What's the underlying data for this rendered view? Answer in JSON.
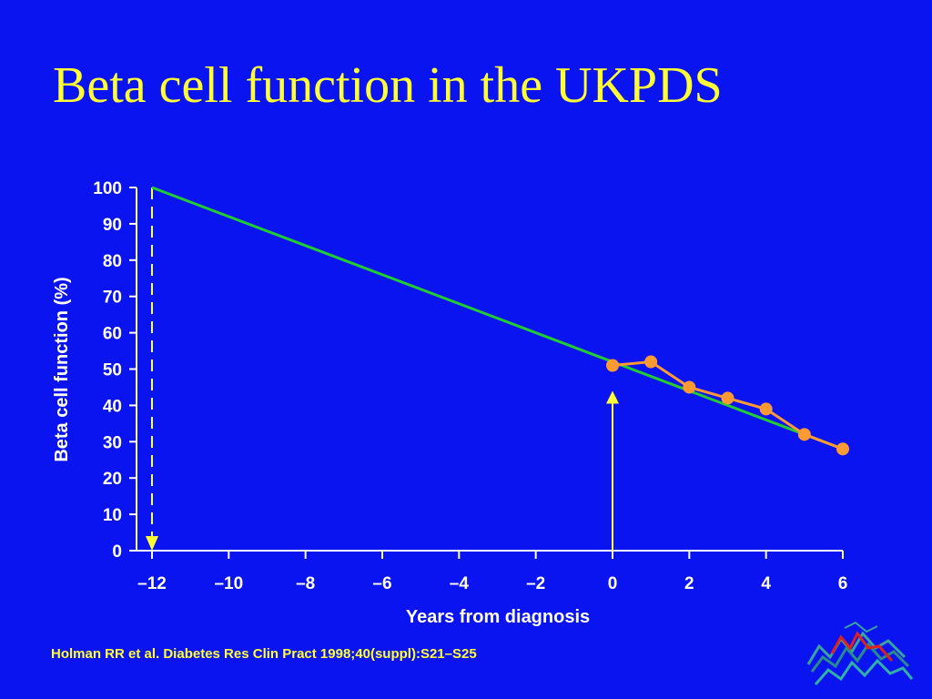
{
  "slide": {
    "title": "Beta cell function in the UKPDS",
    "citation": "Holman RR et al. Diabetes Res Clin Pract 1998;40(suppl):S21–S25"
  },
  "colors": {
    "background": "#0a14f0",
    "text": "#ffffff",
    "title": "#ffff33",
    "trend_line": "#22cc33",
    "observed_line": "#ff9933",
    "observed_points": "#ff9933",
    "arrows": "#ffff33"
  },
  "chart_data": {
    "type": "line",
    "xlabel": "Years from diagnosis",
    "ylabel": "Beta cell function (%)",
    "xlim": [
      -12,
      6
    ],
    "ylim": [
      0,
      100
    ],
    "x_ticks": [
      -12,
      -10,
      -8,
      -6,
      -4,
      -2,
      0,
      2,
      4,
      6
    ],
    "x_tick_labels": [
      "–12",
      "–10",
      "–8",
      "–6",
      "–4",
      "–2",
      "0",
      "2",
      "4",
      "6"
    ],
    "y_ticks": [
      0,
      10,
      20,
      30,
      40,
      50,
      60,
      70,
      80,
      90,
      100
    ],
    "y_tick_labels": [
      "0",
      "10",
      "20",
      "30",
      "40",
      "50",
      "60",
      "70",
      "80",
      "90",
      "100"
    ],
    "grid": false,
    "series": [
      {
        "style": "line",
        "color": "#22cc33",
        "x": [
          -12,
          6
        ],
        "y": [
          100,
          28
        ]
      },
      {
        "style": "line-markers",
        "color": "#ff9933",
        "x": [
          0,
          1,
          2,
          3,
          4,
          5,
          6
        ],
        "y": [
          51,
          52,
          45,
          42,
          39,
          32,
          28
        ]
      }
    ],
    "annotations": [
      {
        "type": "dashed-arrow-down",
        "x": -12,
        "y_from": 100,
        "y_to": 0
      },
      {
        "type": "solid-arrow-up",
        "x": 0,
        "y_from": 0,
        "y_to": 44
      }
    ]
  }
}
